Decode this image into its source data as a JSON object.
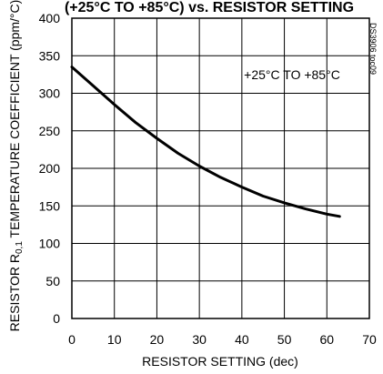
{
  "chart_data": {
    "type": "line",
    "title": "(+25°C TO +85°C) vs. RESISTOR SETTING",
    "xlabel": "RESISTOR SETTING (dec)",
    "ylabel_prefix": "RESISTOR R",
    "ylabel_sub": "0,1",
    "ylabel_suffix": " TEMPERATURE COEFFICIENT (ppm/°C)",
    "xlim": [
      0,
      70
    ],
    "ylim": [
      0,
      400
    ],
    "xticks": [
      "0",
      "10",
      "20",
      "30",
      "40",
      "50",
      "60",
      "70"
    ],
    "yticks": [
      "0",
      "50",
      "100",
      "150",
      "200",
      "250",
      "300",
      "350",
      "400"
    ],
    "grid": true,
    "annotation": "+25°C TO +85°C",
    "figure_code": "DS3906 toc09",
    "series": [
      {
        "x": [
          0,
          5,
          10,
          15,
          20,
          25,
          30,
          35,
          40,
          45,
          50,
          55,
          60,
          63
        ],
        "y": [
          335,
          310,
          285,
          261,
          240,
          220,
          203,
          188,
          175,
          163,
          154,
          146,
          139,
          136
        ]
      }
    ]
  }
}
